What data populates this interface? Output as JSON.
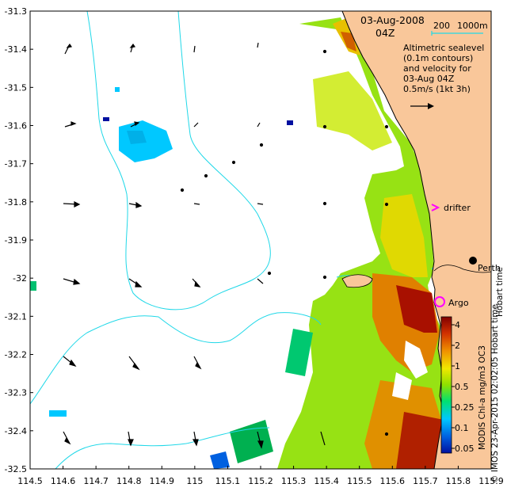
{
  "map": {
    "date_label": "03-Aug-2008",
    "time_label": "04Z",
    "depth_legend": {
      "shallow": "200",
      "deep": "1000m"
    },
    "description_lines": [
      "Altimetric sealevel",
      "(0.1m contours)",
      "and velocity for",
      "03-Aug 04Z"
    ],
    "scale_text": "0.5m/s (1kt 3h)",
    "drifter_label": "drifter",
    "argo_label": "Argo",
    "city_label": "Perth",
    "timezone_label": "Hobart time",
    "credit": "© IMOS 23-Apr-2015 02:02:05 Hobart time",
    "colorbar_title": "MODIS Chl-a mg/m3 OC3",
    "colorbar_ticks": [
      "4",
      "2",
      "1",
      "0.5",
      "0.25",
      "0.1",
      "0.05"
    ],
    "x_ticks": [
      "114.5",
      "114.6",
      "114.7",
      "114.8",
      "114.9",
      "115",
      "115.1",
      "115.2",
      "115.3",
      "115.4",
      "115.5",
      "115.6",
      "115.7",
      "115.8",
      "115.9"
    ],
    "y_ticks": [
      "-31.3",
      "-31.4",
      "-31.5",
      "-31.6",
      "-31.7",
      "-31.8",
      "-31.9",
      "-32",
      "-32.1",
      "-32.2",
      "-32.3",
      "-32.4",
      "-32.5"
    ],
    "colors": {
      "land": "#f9c79a",
      "bathymetry": "#20d8e8",
      "drifter": "#ff00ff",
      "argo": "#ff00ff",
      "chl_low": "#00c8ff",
      "chl_mid": "#8ee000",
      "chl_high": "#a01000"
    }
  }
}
